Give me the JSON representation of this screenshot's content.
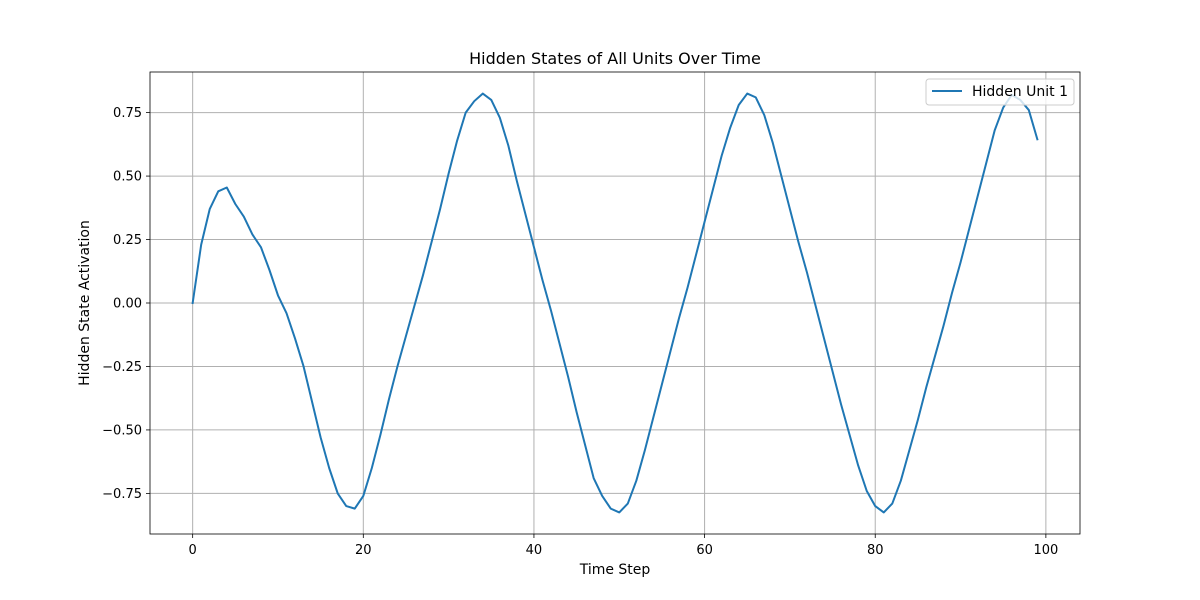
{
  "figure": {
    "title": "Hidden States of All Units Over Time"
  },
  "chart_data": {
    "type": "line",
    "title": "Hidden States of All Units Over Time",
    "xlabel": "Time Step",
    "ylabel": "Hidden State Activation",
    "xlim": [
      -5,
      104
    ],
    "ylim": [
      -0.91,
      0.91
    ],
    "xticks": [
      0,
      20,
      40,
      60,
      80,
      100
    ],
    "xtick_labels": [
      "0",
      "20",
      "40",
      "60",
      "80",
      "100"
    ],
    "yticks": [
      -0.75,
      -0.5,
      -0.25,
      0.0,
      0.25,
      0.5,
      0.75
    ],
    "ytick_labels": [
      "−0.75",
      "−0.50",
      "−0.25",
      "0.00",
      "0.25",
      "0.50",
      "0.75"
    ],
    "grid": true,
    "legend_position": "upper right",
    "series": [
      {
        "name": "Hidden Unit 1",
        "color": "#1f77b4",
        "x": [
          0,
          1,
          2,
          3,
          4,
          5,
          6,
          7,
          8,
          9,
          10,
          11,
          12,
          13,
          14,
          15,
          16,
          17,
          18,
          19,
          20,
          21,
          22,
          23,
          24,
          25,
          26,
          27,
          28,
          29,
          30,
          31,
          32,
          33,
          34,
          35,
          36,
          37,
          38,
          39,
          40,
          41,
          42,
          43,
          44,
          45,
          46,
          47,
          48,
          49,
          50,
          51,
          52,
          53,
          54,
          55,
          56,
          57,
          58,
          59,
          60,
          61,
          62,
          63,
          64,
          65,
          66,
          67,
          68,
          69,
          70,
          71,
          72,
          73,
          74,
          75,
          76,
          77,
          78,
          79,
          80,
          81,
          82,
          83,
          84,
          85,
          86,
          87,
          88,
          89,
          90,
          91,
          92,
          93,
          94,
          95,
          96,
          97,
          98,
          99
        ],
        "y": [
          0.0,
          0.23,
          0.37,
          0.44,
          0.455,
          0.39,
          0.34,
          0.27,
          0.22,
          0.13,
          0.03,
          -0.04,
          -0.14,
          -0.25,
          -0.39,
          -0.53,
          -0.65,
          -0.75,
          -0.8,
          -0.81,
          -0.76,
          -0.65,
          -0.52,
          -0.38,
          -0.25,
          -0.13,
          -0.01,
          0.11,
          0.24,
          0.37,
          0.51,
          0.64,
          0.75,
          0.795,
          0.825,
          0.8,
          0.73,
          0.62,
          0.48,
          0.35,
          0.22,
          0.09,
          -0.03,
          -0.16,
          -0.29,
          -0.43,
          -0.56,
          -0.69,
          -0.76,
          -0.81,
          -0.825,
          -0.79,
          -0.7,
          -0.58,
          -0.45,
          -0.32,
          -0.19,
          -0.06,
          0.06,
          0.19,
          0.32,
          0.45,
          0.58,
          0.69,
          0.78,
          0.825,
          0.81,
          0.74,
          0.63,
          0.5,
          0.37,
          0.24,
          0.12,
          -0.01,
          -0.14,
          -0.27,
          -0.4,
          -0.52,
          -0.64,
          -0.74,
          -0.8,
          -0.825,
          -0.79,
          -0.7,
          -0.58,
          -0.46,
          -0.33,
          -0.21,
          -0.09,
          0.04,
          0.16,
          0.29,
          0.42,
          0.55,
          0.68,
          0.77,
          0.82,
          0.8,
          0.76,
          0.645
        ]
      }
    ]
  }
}
